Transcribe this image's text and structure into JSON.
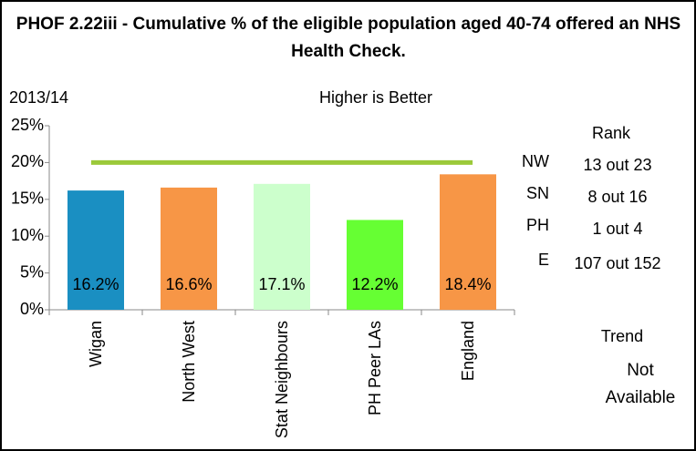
{
  "chart_data": {
    "type": "bar",
    "title": "PHOF 2.22iii - Cumulative % of the eligible population aged 40-74 offered an NHS Health Check.",
    "subtitle": "2013/14",
    "annotation": "Higher is Better",
    "categories": [
      "Wigan",
      "North West",
      "Stat Neighbours",
      "PH Peer LAs",
      "England"
    ],
    "values": [
      16.2,
      16.6,
      17.1,
      12.2,
      18.4
    ],
    "value_labels": [
      "16.2%",
      "16.6%",
      "17.1%",
      "12.2%",
      "18.4%"
    ],
    "colors": [
      "#1a8fc2",
      "#f79646",
      "#ccffcc",
      "#66ff33",
      "#f79646"
    ],
    "target": 20,
    "target_color": "#9bc93a",
    "ylim": [
      0,
      25
    ],
    "yticks": [
      {
        "value": 0,
        "label": "0%"
      },
      {
        "value": 5,
        "label": "5%"
      },
      {
        "value": 10,
        "label": "10%"
      },
      {
        "value": 15,
        "label": "15%"
      },
      {
        "value": 20,
        "label": "20%"
      },
      {
        "value": 25,
        "label": "25%"
      }
    ]
  },
  "rank": {
    "title": "Rank",
    "rows": [
      {
        "label": "NW",
        "value": "13 out 23"
      },
      {
        "label": "SN",
        "value": "8 out 16"
      },
      {
        "label": "PH",
        "value": "1 out 4"
      },
      {
        "label": "E",
        "value": "107 out 152"
      }
    ]
  },
  "trend": {
    "title": "Trend",
    "value": "Not Available"
  }
}
